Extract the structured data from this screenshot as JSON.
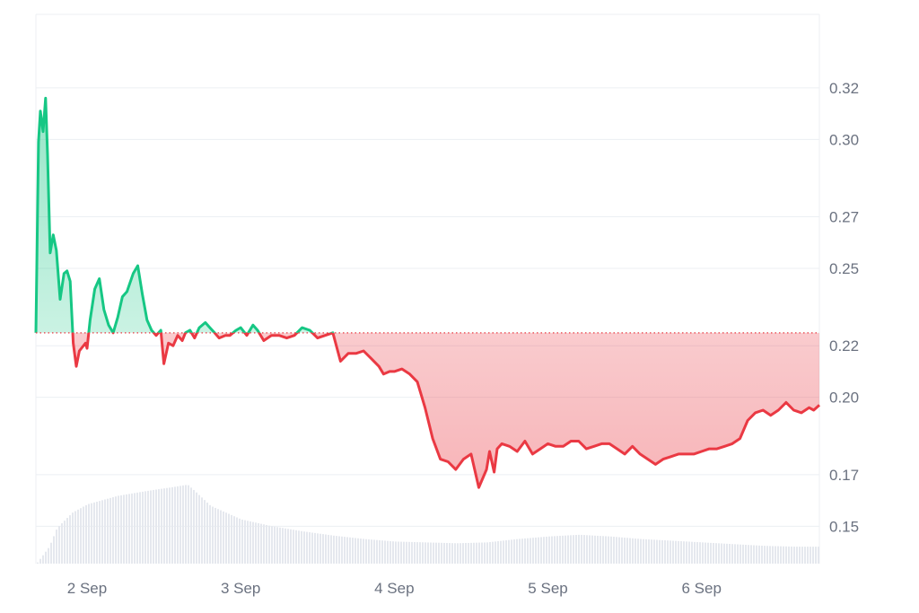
{
  "chart_data": {
    "type": "area",
    "baseline": 0.225,
    "y_ticks": [
      0.32,
      0.3,
      0.27,
      0.25,
      0.22,
      0.2,
      0.17,
      0.15
    ],
    "y_tick_labels": [
      "0.32",
      "0.30",
      "0.27",
      "0.25",
      "0.22",
      "0.20",
      "0.17",
      "0.15"
    ],
    "ylim": [
      0.1355,
      0.3485
    ],
    "x_ticks": [
      1,
      2,
      3,
      4,
      5
    ],
    "x_tick_labels": [
      "2 Sep",
      "3 Sep",
      "4 Sep",
      "5 Sep",
      "6 Sep"
    ],
    "xlim": [
      0.667,
      5.767
    ],
    "grid": true,
    "colors": {
      "up": "#16c784",
      "down": "#ea3943",
      "up_fill": "#16c784",
      "down_fill": "#ea3943",
      "volume": "#e5e8ee",
      "grid": "#eceff3",
      "baseline": "#ea3943"
    },
    "series": [
      {
        "x": [
          0.667,
          0.684,
          0.696,
          0.714,
          0.73,
          0.743,
          0.76,
          0.78,
          0.8,
          0.825,
          0.85,
          0.87,
          0.89,
          0.91,
          0.93,
          0.95,
          0.99,
          1.0,
          1.02,
          1.05,
          1.08,
          1.11,
          1.14,
          1.17,
          1.2,
          1.23,
          1.26,
          1.3,
          1.33,
          1.36,
          1.39,
          1.42,
          1.45,
          1.48,
          1.5,
          1.53,
          1.56,
          1.59,
          1.62,
          1.64,
          1.67,
          1.7,
          1.73,
          1.77,
          1.8,
          1.83,
          1.86,
          1.9,
          1.93,
          1.97,
          2.0,
          2.04,
          2.08,
          2.11,
          2.15,
          2.2,
          2.25,
          2.3,
          2.35,
          2.4,
          2.45,
          2.5,
          2.55,
          2.6,
          2.65,
          2.7,
          2.75,
          2.8,
          2.85,
          2.9,
          2.93,
          2.97,
          3.0,
          3.05,
          3.1,
          3.15,
          3.2,
          3.25,
          3.3,
          3.35,
          3.4,
          3.45,
          3.5,
          3.55,
          3.6,
          3.62,
          3.65,
          3.67,
          3.7,
          3.75,
          3.8,
          3.85,
          3.9,
          3.95,
          4.0,
          4.05,
          4.1,
          4.15,
          4.2,
          4.25,
          4.3,
          4.35,
          4.4,
          4.45,
          4.5,
          4.55,
          4.6,
          4.65,
          4.7,
          4.75,
          4.8,
          4.85,
          4.9,
          4.95,
          5.0,
          5.05,
          5.1,
          5.15,
          5.2,
          5.25,
          5.3,
          5.35,
          5.4,
          5.45,
          5.5,
          5.55,
          5.6,
          5.65,
          5.7,
          5.73,
          5.767
        ],
        "y": [
          0.225,
          0.299,
          0.311,
          0.303,
          0.316,
          0.294,
          0.256,
          0.263,
          0.257,
          0.238,
          0.248,
          0.249,
          0.245,
          0.221,
          0.212,
          0.218,
          0.221,
          0.219,
          0.23,
          0.242,
          0.246,
          0.234,
          0.228,
          0.225,
          0.231,
          0.239,
          0.241,
          0.248,
          0.251,
          0.24,
          0.23,
          0.226,
          0.224,
          0.226,
          0.213,
          0.221,
          0.22,
          0.224,
          0.222,
          0.225,
          0.226,
          0.223,
          0.227,
          0.229,
          0.227,
          0.225,
          0.223,
          0.224,
          0.224,
          0.226,
          0.227,
          0.224,
          0.228,
          0.226,
          0.222,
          0.224,
          0.224,
          0.223,
          0.224,
          0.227,
          0.226,
          0.223,
          0.224,
          0.225,
          0.214,
          0.217,
          0.217,
          0.218,
          0.215,
          0.212,
          0.209,
          0.21,
          0.21,
          0.211,
          0.209,
          0.206,
          0.196,
          0.184,
          0.176,
          0.175,
          0.172,
          0.176,
          0.178,
          0.165,
          0.172,
          0.179,
          0.171,
          0.18,
          0.182,
          0.181,
          0.179,
          0.183,
          0.178,
          0.18,
          0.182,
          0.181,
          0.181,
          0.183,
          0.183,
          0.18,
          0.181,
          0.182,
          0.182,
          0.18,
          0.178,
          0.181,
          0.178,
          0.176,
          0.174,
          0.176,
          0.177,
          0.178,
          0.178,
          0.178,
          0.179,
          0.18,
          0.18,
          0.181,
          0.182,
          0.184,
          0.191,
          0.194,
          0.195,
          0.193,
          0.195,
          0.198,
          0.195,
          0.194,
          0.196,
          0.195,
          0.197
        ]
      }
    ],
    "volume": {
      "x": [
        0.667,
        0.75,
        0.8,
        0.9,
        1.0,
        1.2,
        1.4,
        1.55,
        1.65,
        1.7,
        1.8,
        2.0,
        2.2,
        2.4,
        2.6,
        2.8,
        3.0,
        3.2,
        3.4,
        3.6,
        3.8,
        4.0,
        4.2,
        4.4,
        4.6,
        4.8,
        5.0,
        5.2,
        5.4,
        5.6,
        5.767
      ],
      "v": [
        0,
        20,
        42,
        60,
        70,
        80,
        86,
        90,
        93,
        85,
        68,
        52,
        44,
        38,
        33,
        29,
        26,
        25,
        24,
        25,
        29,
        32,
        34,
        32,
        29,
        27,
        25,
        23,
        21,
        20,
        20
      ]
    }
  }
}
